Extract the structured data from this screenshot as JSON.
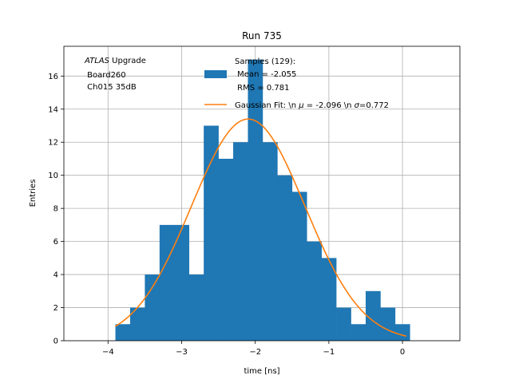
{
  "chart_data": {
    "type": "bar",
    "title": "Run 735",
    "xlabel": "time [ns]",
    "ylabel": "Entries",
    "xlim": [
      -4.6,
      0.78
    ],
    "ylim": [
      0,
      17.8
    ],
    "xticks": [
      -4,
      -3,
      -2,
      -1,
      0
    ],
    "xtick_labels": [
      "−4",
      "−3",
      "−2",
      "−1",
      "0"
    ],
    "yticks": [
      0,
      2,
      4,
      6,
      8,
      10,
      12,
      14,
      16
    ],
    "ytick_labels": [
      "0",
      "2",
      "4",
      "6",
      "8",
      "10",
      "12",
      "14",
      "16"
    ],
    "grid": true,
    "annotation": {
      "italic": "ATLAS",
      "line1_rest": " Upgrade",
      "line2": " Board260",
      "line3": " Ch015 35dB"
    },
    "legend": {
      "position": "top-right",
      "hist_lines": [
        "Samples (129):",
        " Mean = -2.055",
        " RMS = 0.781"
      ],
      "fit_label_a": "Gaussian Fit: \\n ",
      "fit_mu_symbol": "μ",
      "fit_label_b": " = -2.096 \\n ",
      "fit_sigma_symbol": "σ",
      "fit_label_c": "=0.772"
    },
    "histogram": {
      "name": "Samples (129)",
      "color": "#1f77b4",
      "bin_edges": [
        -3.9,
        -3.7,
        -3.5,
        -3.3,
        -3.1,
        -2.9,
        -2.7,
        -2.5,
        -2.3,
        -2.1,
        -1.9,
        -1.7,
        -1.5,
        -1.3,
        -1.1,
        -0.9,
        -0.7,
        -0.5,
        -0.3,
        -0.1,
        0.1
      ],
      "counts": [
        1,
        2,
        4,
        7,
        7,
        4,
        13,
        11,
        12,
        17,
        12,
        10,
        9,
        6,
        5,
        2,
        1,
        3,
        2,
        1
      ]
    },
    "fit": {
      "name": "Gaussian Fit",
      "color": "#ff7f0e",
      "mu": -2.096,
      "sigma": 0.772,
      "amplitude": 13.4,
      "x_range": [
        -3.9,
        0.05
      ]
    }
  }
}
